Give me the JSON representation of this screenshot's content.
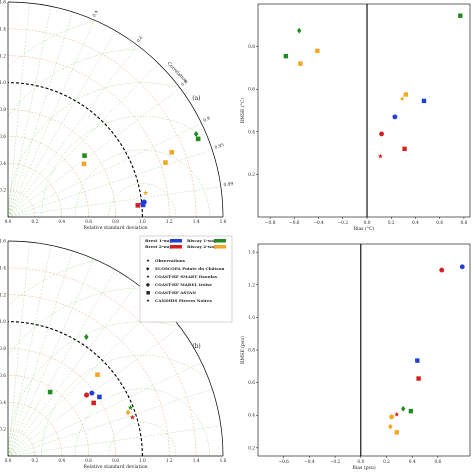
{
  "chart_data": [
    {
      "type": "scatter",
      "panel": "(a)",
      "subtype": "taylor",
      "xlabel": "Relative standard deviation",
      "angle_label": "Correlation",
      "rlim": [
        0,
        1.6
      ],
      "r_ticks": [
        "0.0",
        "0.2",
        "0.4",
        "0.6",
        "0.8",
        "1.0",
        "1.2",
        "1.4",
        "1.6"
      ],
      "corr_ticks": [
        "0.4",
        "0.6",
        "0.8",
        "0.9",
        "0.95",
        "0.99"
      ],
      "reference_arc": 1.0,
      "points": [
        {
          "name": "Brest 1-way",
          "marker": "circle",
          "color": "#1f3fd6",
          "sd": 1.02,
          "corr": 0.994
        },
        {
          "name": "Brest 1-way",
          "marker": "square",
          "color": "#1f3fd6",
          "sd": 1.01,
          "corr": 0.996
        },
        {
          "name": "Brest 1-way",
          "marker": "star",
          "color": "#1f3fd6",
          "sd": 1.0,
          "corr": 0.995
        },
        {
          "name": "Brest 2-way",
          "marker": "square",
          "color": "#d62020",
          "sd": 0.97,
          "corr": 0.996
        },
        {
          "name": "Biscay 1-way",
          "marker": "square",
          "color": "#228b22",
          "sd": 0.73,
          "corr": 0.78
        },
        {
          "name": "Biscay 1-way",
          "marker": "diamond",
          "color": "#228b22",
          "sd": 1.53,
          "corr": 0.915
        },
        {
          "name": "Biscay 1-way",
          "marker": "square",
          "color": "#228b22",
          "sd": 1.53,
          "corr": 0.925
        },
        {
          "name": "Biscay 2-way",
          "marker": "square",
          "color": "#f5a623",
          "sd": 0.69,
          "corr": 0.82
        },
        {
          "name": "Biscay 2-way",
          "marker": "square",
          "color": "#f5a623",
          "sd": 1.31,
          "corr": 0.93
        },
        {
          "name": "Biscay 2-way",
          "marker": "square",
          "color": "#f5a623",
          "sd": 1.24,
          "corr": 0.945
        },
        {
          "name": "Biscay 2-way",
          "marker": "star",
          "color": "#f5a623",
          "sd": 1.04,
          "corr": 0.985
        }
      ]
    },
    {
      "type": "scatter",
      "panel": "right-top",
      "xlabel": "Bias (°C)",
      "ylabel": "RMSE (°C)",
      "xlim": [
        -0.9,
        0.85
      ],
      "ylim": [
        0,
        1.0
      ],
      "x_ticks": [
        "−0.8",
        "−0.6",
        "−0.4",
        "−0.2",
        "0.0",
        "0.2",
        "0.4",
        "0.6",
        "0.8"
      ],
      "y_ticks": [
        "0.2",
        "0.4",
        "0.6",
        "0.8"
      ],
      "points": [
        {
          "marker": "square",
          "color": "#228b22",
          "x": -0.67,
          "y": 0.755
        },
        {
          "marker": "diamond",
          "color": "#228b22",
          "x": -0.56,
          "y": 0.875
        },
        {
          "marker": "square",
          "color": "#f5a623",
          "x": -0.55,
          "y": 0.72
        },
        {
          "marker": "square",
          "color": "#f5a623",
          "x": -0.41,
          "y": 0.78
        },
        {
          "marker": "square",
          "color": "#228b22",
          "x": 0.77,
          "y": 0.945
        },
        {
          "marker": "square",
          "color": "#f5a623",
          "x": 0.32,
          "y": 0.575
        },
        {
          "marker": "star",
          "color": "#f5a623",
          "x": 0.29,
          "y": 0.555
        },
        {
          "marker": "square",
          "color": "#1f3fd6",
          "x": 0.47,
          "y": 0.545
        },
        {
          "marker": "circle",
          "color": "#1f3fd6",
          "x": 0.23,
          "y": 0.47
        },
        {
          "marker": "circle",
          "color": "#d62020",
          "x": 0.12,
          "y": 0.39
        },
        {
          "marker": "square",
          "color": "#d62020",
          "x": 0.31,
          "y": 0.32
        },
        {
          "marker": "star",
          "color": "#d62020",
          "x": 0.11,
          "y": 0.285
        }
      ]
    },
    {
      "type": "scatter",
      "panel": "(b)",
      "subtype": "taylor",
      "xlabel": "Relative standard deviation",
      "rlim": [
        0,
        1.6
      ],
      "r_ticks": [
        "0.0",
        "0.2",
        "0.4",
        "0.6",
        "0.8",
        "1.0",
        "1.2",
        "1.4",
        "1.6"
      ],
      "reference_arc": 1.0,
      "points": [
        {
          "name": "Biscay 1-way",
          "marker": "diamond",
          "color": "#228b22",
          "sd": 1.06,
          "corr": 0.55
        },
        {
          "name": "Biscay 2-way",
          "marker": "square",
          "color": "#f5a623",
          "sd": 0.9,
          "corr": 0.74
        },
        {
          "name": "Biscay 1-way",
          "marker": "square",
          "color": "#228b22",
          "sd": 0.57,
          "corr": 0.55
        },
        {
          "name": "Brest 1-way",
          "marker": "circle",
          "color": "#1f3fd6",
          "sd": 0.78,
          "corr": 0.8
        },
        {
          "name": "Brest 2-way",
          "marker": "circle",
          "color": "#d62020",
          "sd": 0.74,
          "corr": 0.79
        },
        {
          "name": "Brest 1-way",
          "marker": "square",
          "color": "#1f3fd6",
          "sd": 0.81,
          "corr": 0.84
        },
        {
          "name": "Brest 2-way",
          "marker": "square",
          "color": "#d62020",
          "sd": 0.75,
          "corr": 0.85
        },
        {
          "name": "Biscay 1-way",
          "marker": "star",
          "color": "#228b22",
          "sd": 0.98,
          "corr": 0.93
        },
        {
          "name": "Biscay 2-way",
          "marker": "diamond",
          "color": "#f5a623",
          "sd": 0.95,
          "corr": 0.94
        },
        {
          "name": "Brest 2-way",
          "marker": "star",
          "color": "#d62020",
          "sd": 0.97,
          "corr": 0.955
        }
      ],
      "legend": {
        "entries": [
          "Brest 1-way",
          "Brest 2-way",
          "Biscay 1-way",
          "Biscay 2-way"
        ],
        "entry_colors": [
          "#1f3fd6",
          "#d62020",
          "#228b22",
          "#f5a623"
        ],
        "markers": [
          "Observations",
          "ECOSCOPA Pointe du Château",
          "COAST-HF SMART Daoulas",
          "COAST-HF MAREL Iroise",
          "COAST-HF ASTAN",
          "CANDHIS Pierres Noires"
        ]
      }
    },
    {
      "type": "scatter",
      "panel": "right-bottom",
      "xlabel": "Bias (psu)",
      "ylabel": "RMSE (psu)",
      "xlim": [
        -0.8,
        0.85
      ],
      "ylim": [
        0.15,
        1.45
      ],
      "x_ticks": [
        "−0.6",
        "−0.4",
        "−0.2",
        "0.0",
        "0.2",
        "0.4",
        "0.6"
      ],
      "y_ticks": [
        "0.2",
        "0.4",
        "0.6",
        "0.8",
        "1.0",
        "1.2",
        "1.4"
      ],
      "points": [
        {
          "marker": "circle",
          "color": "#1f3fd6",
          "x": 0.79,
          "y": 1.31
        },
        {
          "marker": "circle",
          "color": "#d62020",
          "x": 0.63,
          "y": 1.29
        },
        {
          "marker": "square",
          "color": "#1f3fd6",
          "x": 0.44,
          "y": 0.735
        },
        {
          "marker": "square",
          "color": "#d62020",
          "x": 0.45,
          "y": 0.625
        },
        {
          "marker": "diamond",
          "color": "#228b22",
          "x": 0.33,
          "y": 0.44
        },
        {
          "marker": "square",
          "color": "#228b22",
          "x": 0.39,
          "y": 0.425
        },
        {
          "marker": "star",
          "color": "#d62020",
          "x": 0.28,
          "y": 0.405
        },
        {
          "marker": "circle",
          "color": "#f5a623",
          "x": 0.24,
          "y": 0.39
        },
        {
          "marker": "diamond",
          "color": "#f5a623",
          "x": 0.23,
          "y": 0.33
        },
        {
          "marker": "square",
          "color": "#f5a623",
          "x": 0.28,
          "y": 0.295
        }
      ]
    }
  ]
}
